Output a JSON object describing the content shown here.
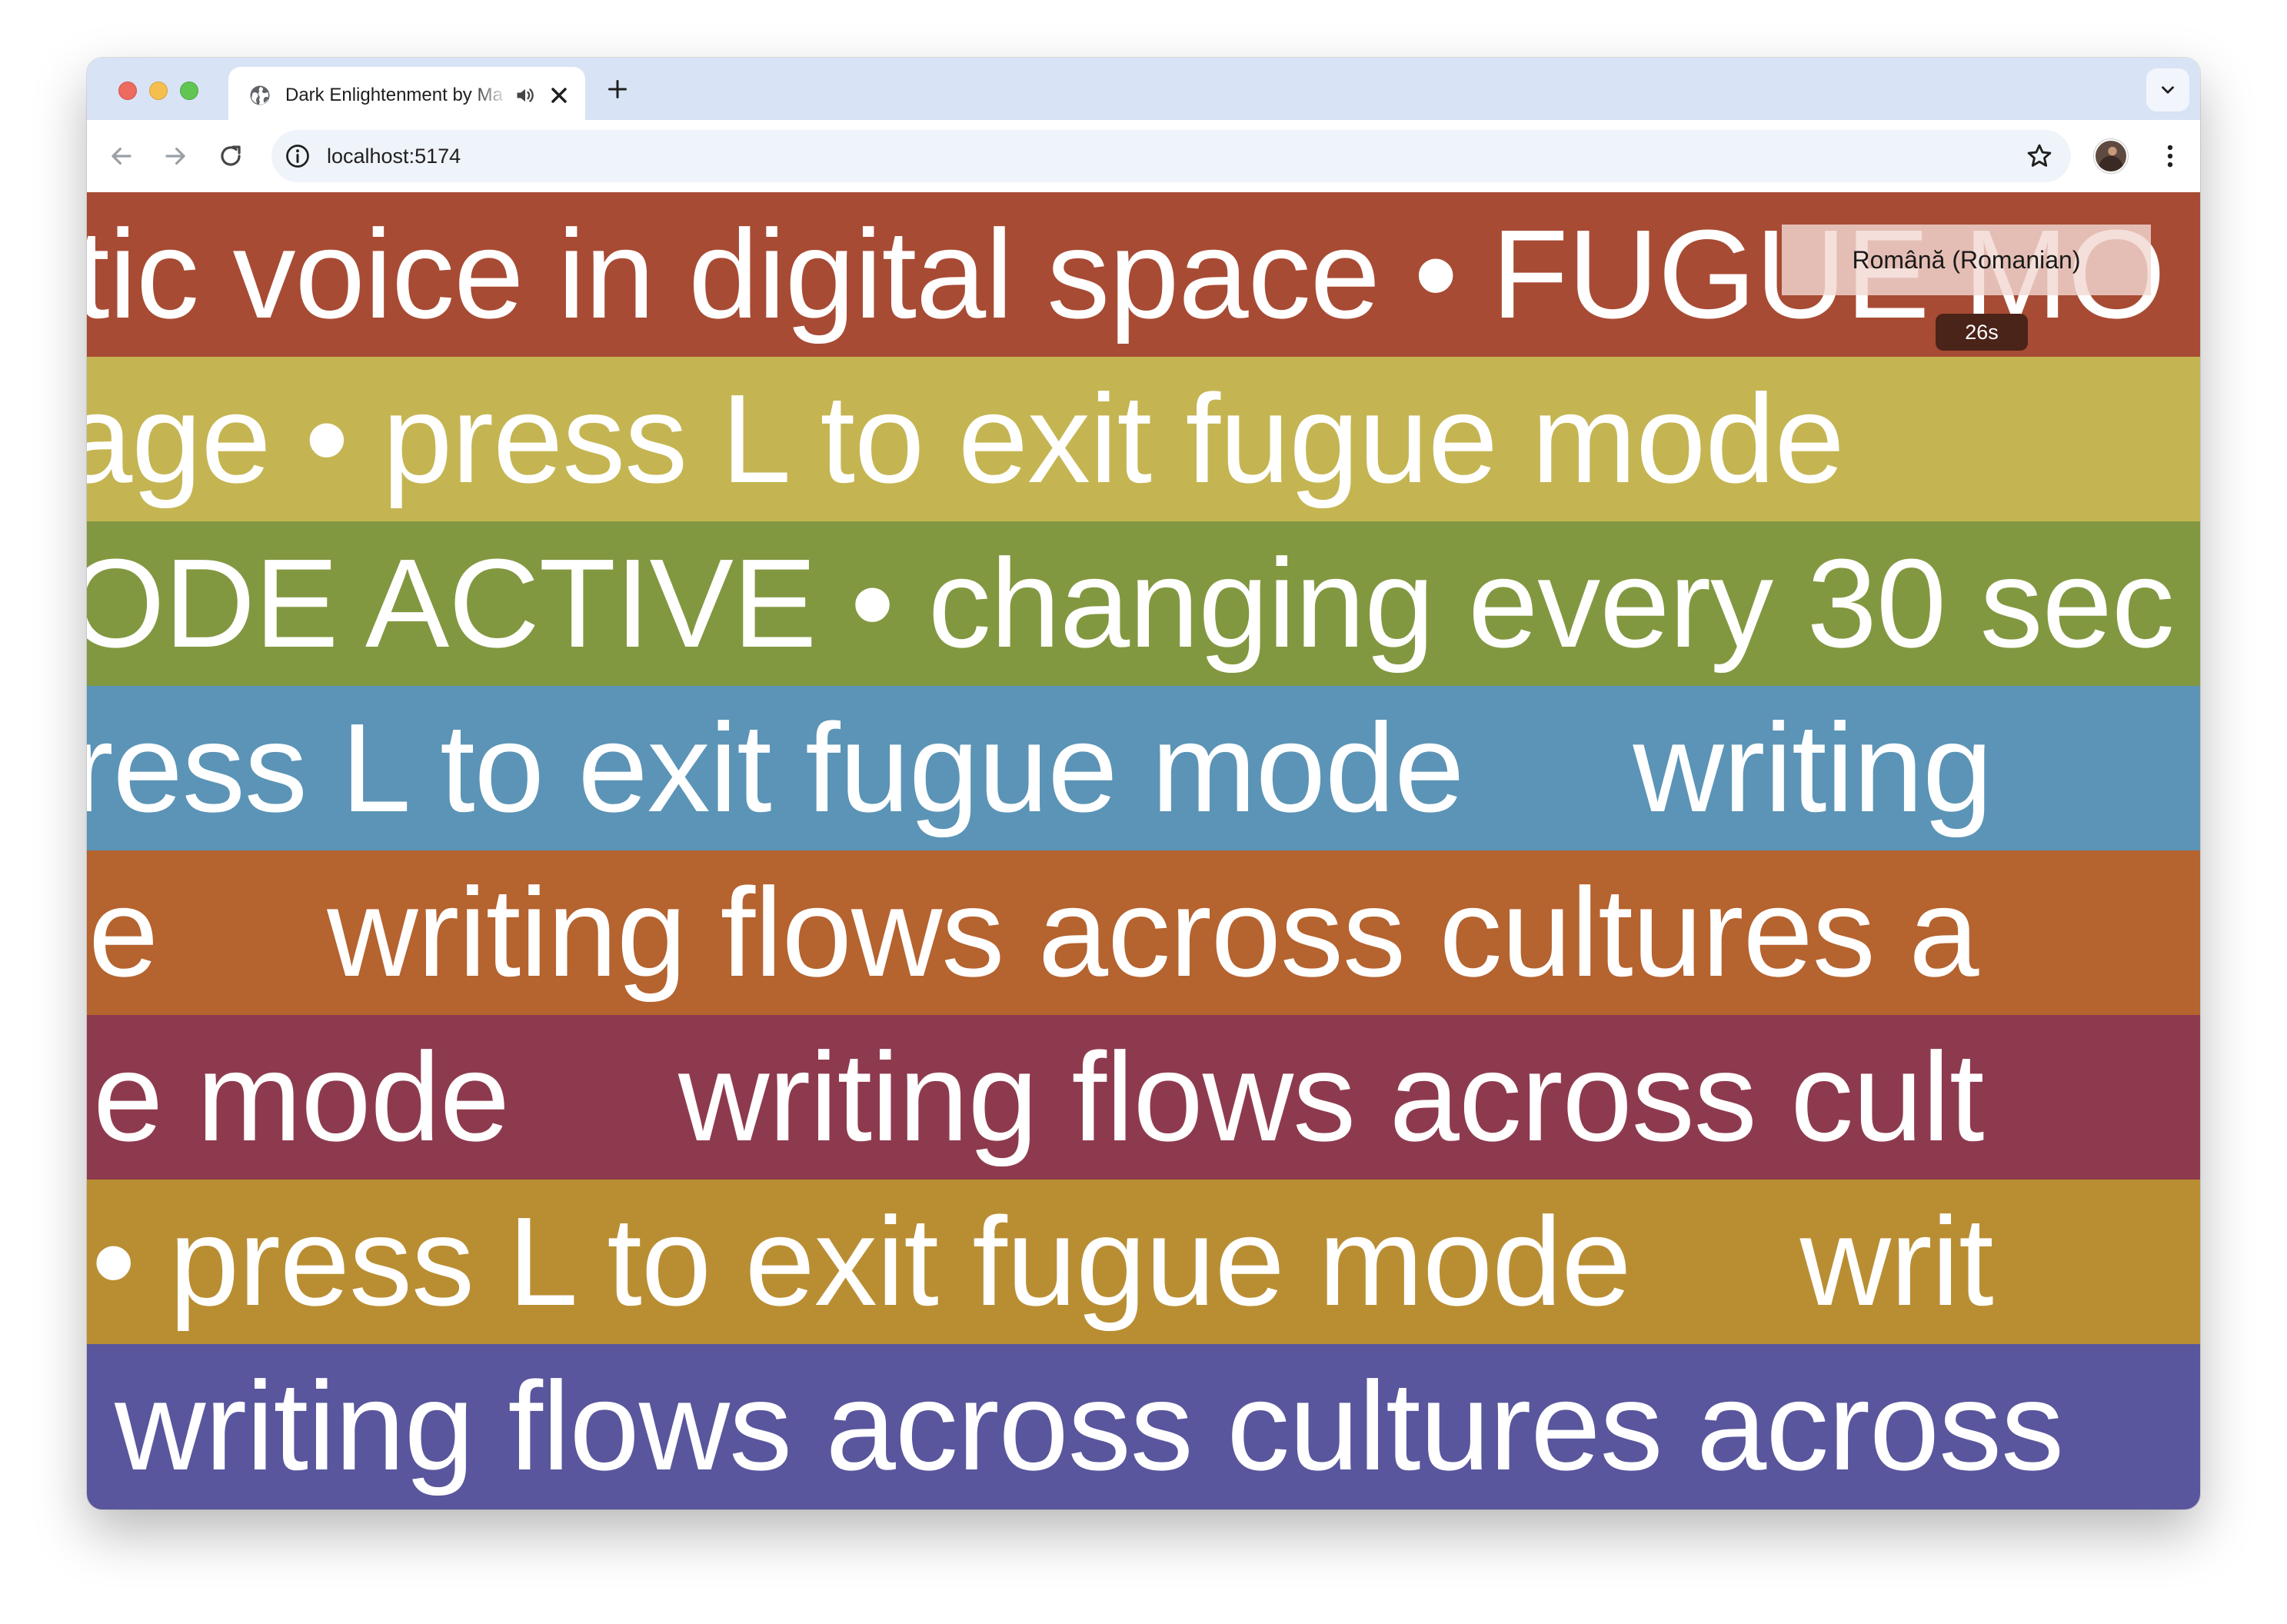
{
  "tab": {
    "title": "Dark Enlightenment by Ma",
    "icon": "globe-icon",
    "audio_icon": "speaker-icon",
    "close_icon": "close-icon"
  },
  "toolbar": {
    "url": "localhost:5174",
    "back_icon": "arrow-left-icon",
    "forward_icon": "arrow-right-icon",
    "reload_icon": "reload-icon",
    "site_info_icon": "info-icon",
    "bookmark_icon": "star-icon",
    "menu_icon": "kebab-menu-icon"
  },
  "page": {
    "language": "Română (Romanian)",
    "timer": "26s",
    "text_color": "#ffffff",
    "bands": [
      {
        "color": "#a84b34",
        "segments": [
          "tic voice in digital space • FUGUE MO"
        ]
      },
      {
        "color": "#c4b552",
        "segments": [
          "age • press L to exit fugue mode"
        ]
      },
      {
        "color": "#829840",
        "segments": [
          "ODE ACTIVE • changing every 30 sec"
        ]
      },
      {
        "color": "#5b94b6",
        "segments": [
          "ress L to exit fugue mode",
          "writing"
        ]
      },
      {
        "color": "#b5632f",
        "segments": [
          "e",
          "writing flows across cultures a"
        ]
      },
      {
        "color": "#8e3a4e",
        "segments": [
          "e mode",
          "writing flows across cult"
        ]
      },
      {
        "color": "#b98e33",
        "segments": [
          "• press L to exit fugue mode",
          "writ"
        ]
      },
      {
        "color": "#59569d",
        "segments": [
          "writing flows across cultures across"
        ]
      }
    ]
  },
  "colors": {
    "tabstrip": "#d9e3f6",
    "omnibox": "#eff3fa",
    "lang_box": "#f2d8d2",
    "timer_bg": "#4a2319"
  }
}
